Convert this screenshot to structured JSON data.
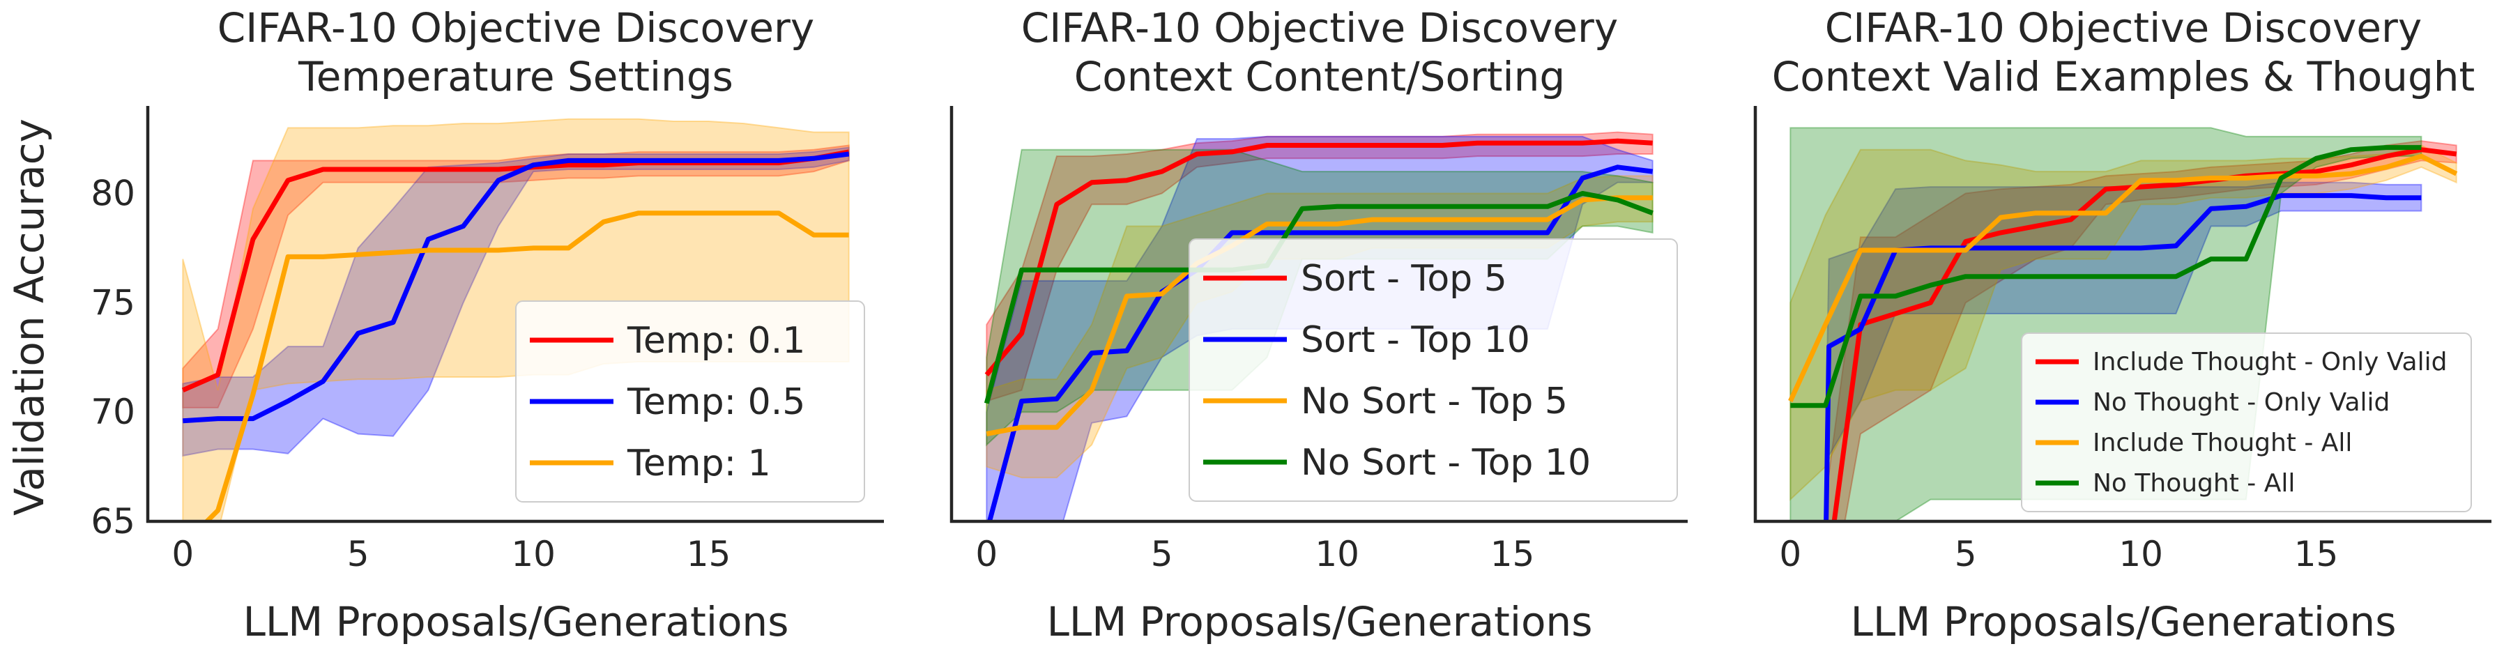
{
  "figure": {
    "ylabel": "Validation Accuracy"
  },
  "chart_data": [
    {
      "type": "line",
      "title": "CIFAR-10 Objective Discovery\nTemperature Settings",
      "xlabel": "LLM Proposals/Generations",
      "ylabel": "Validation Accuracy",
      "xlim": [
        -1,
        20
      ],
      "ylim": [
        65,
        84
      ],
      "xticks": [
        0,
        5,
        10,
        15
      ],
      "yticks": [
        65,
        70,
        75,
        80
      ],
      "legend": "lower-right",
      "legend_size": "big",
      "series": [
        {
          "name": "Temp: 0.1",
          "color": "#ff0000",
          "x": [
            0,
            1,
            2,
            3,
            4,
            5,
            6,
            7,
            8,
            9,
            10,
            11,
            12,
            13,
            14,
            15,
            16,
            17,
            18,
            19
          ],
          "y": [
            71.0,
            71.7,
            77.9,
            80.6,
            81.1,
            81.1,
            81.1,
            81.1,
            81.1,
            81.1,
            81.2,
            81.3,
            81.3,
            81.4,
            81.4,
            81.4,
            81.4,
            81.4,
            81.6,
            81.9
          ],
          "lower": [
            70.2,
            70.2,
            73.8,
            79.0,
            80.5,
            80.5,
            80.5,
            80.5,
            80.5,
            80.5,
            80.6,
            80.7,
            80.7,
            80.8,
            80.8,
            80.8,
            80.8,
            80.8,
            81.0,
            81.5
          ],
          "upper": [
            72.0,
            73.8,
            81.5,
            81.5,
            81.5,
            81.5,
            81.5,
            81.5,
            81.5,
            81.5,
            81.7,
            81.8,
            81.8,
            81.9,
            81.9,
            81.9,
            81.9,
            81.9,
            82.0,
            82.2
          ]
        },
        {
          "name": "Temp: 0.5",
          "color": "#0000ff",
          "x": [
            0,
            1,
            2,
            3,
            4,
            5,
            6,
            7,
            8,
            9,
            10,
            11,
            12,
            13,
            14,
            15,
            16,
            17,
            18,
            19
          ],
          "y": [
            69.6,
            69.7,
            69.7,
            70.5,
            71.4,
            73.6,
            74.1,
            77.9,
            78.5,
            80.6,
            81.3,
            81.5,
            81.5,
            81.5,
            81.5,
            81.5,
            81.5,
            81.5,
            81.6,
            81.8
          ],
          "lower": [
            68.0,
            68.3,
            68.3,
            68.1,
            69.7,
            69.0,
            68.9,
            71.0,
            75.0,
            78.5,
            81.0,
            81.1,
            81.1,
            81.1,
            81.1,
            81.1,
            81.1,
            81.1,
            81.2,
            81.5
          ],
          "upper": [
            71.3,
            71.6,
            71.6,
            73.0,
            73.0,
            77.5,
            79.3,
            81.2,
            81.3,
            81.4,
            81.6,
            81.8,
            81.8,
            81.8,
            81.8,
            81.8,
            81.8,
            81.8,
            81.9,
            82.1
          ]
        },
        {
          "name": "Temp: 1",
          "color": "#ffa500",
          "x": [
            0,
            1,
            2,
            3,
            4,
            5,
            6,
            7,
            8,
            9,
            10,
            11,
            12,
            13,
            14,
            15,
            16,
            17,
            18,
            19
          ],
          "y": [
            63.9,
            65.5,
            70.8,
            77.1,
            77.1,
            77.2,
            77.3,
            77.4,
            77.4,
            77.4,
            77.5,
            77.5,
            78.7,
            79.1,
            79.1,
            79.1,
            79.1,
            79.1,
            78.1,
            78.1
          ],
          "lower": [
            62.0,
            64.5,
            71.0,
            71.3,
            71.4,
            71.5,
            71.5,
            71.6,
            71.6,
            71.6,
            71.7,
            71.7,
            72.2,
            72.3,
            72.3,
            72.3,
            72.3,
            72.3,
            72.3,
            72.3
          ],
          "upper": [
            77.0,
            71.0,
            79.3,
            83.0,
            83.0,
            83.0,
            83.1,
            83.1,
            83.2,
            83.2,
            83.3,
            83.4,
            83.4,
            83.4,
            83.3,
            83.3,
            83.2,
            83.0,
            82.8,
            82.8
          ]
        }
      ]
    },
    {
      "type": "line",
      "title": "CIFAR-10 Objective Discovery\nContext Content/Sorting",
      "xlabel": "LLM Proposals/Generations",
      "ylabel": "",
      "xlim": [
        -1,
        20
      ],
      "ylim": [
        65,
        84
      ],
      "xticks": [
        0,
        5,
        10,
        15
      ],
      "yticks": [],
      "legend": "center-right",
      "legend_size": "big",
      "series": [
        {
          "name": "Sort - Top 5",
          "color": "#ff0000",
          "x": [
            0,
            1,
            2,
            3,
            4,
            5,
            6,
            7,
            8,
            9,
            10,
            11,
            12,
            13,
            14,
            15,
            16,
            17,
            18,
            19
          ],
          "y": [
            71.7,
            73.6,
            79.5,
            80.5,
            80.6,
            81.0,
            81.8,
            81.9,
            82.2,
            82.2,
            82.2,
            82.2,
            82.2,
            82.2,
            82.3,
            82.3,
            82.3,
            82.3,
            82.4,
            82.3
          ],
          "lower": [
            70.5,
            71.0,
            76.5,
            79.5,
            79.5,
            80.0,
            81.2,
            81.4,
            81.6,
            81.6,
            81.6,
            81.6,
            81.6,
            81.6,
            81.7,
            81.7,
            81.7,
            81.7,
            81.8,
            81.8
          ],
          "upper": [
            74.0,
            76.5,
            81.7,
            81.7,
            81.8,
            82.0,
            82.3,
            82.4,
            82.6,
            82.6,
            82.6,
            82.6,
            82.6,
            82.6,
            82.7,
            82.7,
            82.7,
            82.7,
            82.8,
            82.7
          ]
        },
        {
          "name": "Sort - Top 10",
          "color": "#0000ff",
          "x": [
            0,
            1,
            2,
            3,
            4,
            5,
            6,
            7,
            8,
            9,
            10,
            11,
            12,
            13,
            14,
            15,
            16,
            17,
            18,
            19
          ],
          "y": [
            64.5,
            70.5,
            70.6,
            72.7,
            72.8,
            75.5,
            76.5,
            78.2,
            78.2,
            78.2,
            78.2,
            78.2,
            78.2,
            78.2,
            78.2,
            78.2,
            78.2,
            80.7,
            81.2,
            81.0
          ],
          "lower": [
            60.0,
            64.0,
            64.0,
            69.5,
            69.8,
            72.5,
            73.5,
            73.8,
            73.8,
            73.8,
            73.8,
            73.8,
            73.8,
            73.8,
            73.8,
            73.8,
            73.8,
            79.5,
            80.5,
            80.5
          ],
          "upper": [
            70.0,
            76.0,
            76.0,
            76.0,
            76.0,
            78.5,
            82.5,
            82.5,
            82.6,
            82.6,
            82.6,
            82.6,
            82.6,
            82.6,
            82.6,
            82.6,
            82.6,
            82.6,
            82.0,
            81.5
          ]
        },
        {
          "name": "No Sort - Top 5",
          "color": "#ffa500",
          "x": [
            0,
            1,
            2,
            3,
            4,
            5,
            6,
            7,
            8,
            9,
            10,
            11,
            12,
            13,
            14,
            15,
            16,
            17,
            18,
            19
          ],
          "y": [
            69.0,
            69.3,
            69.3,
            71.0,
            75.3,
            75.4,
            76.8,
            77.6,
            78.6,
            78.6,
            78.6,
            78.8,
            78.8,
            78.8,
            78.8,
            78.8,
            78.8,
            79.7,
            79.8,
            79.8
          ],
          "lower": [
            67.5,
            67.0,
            67.0,
            68.5,
            72.0,
            72.5,
            75.0,
            75.5,
            77.0,
            77.0,
            77.0,
            77.5,
            77.5,
            77.5,
            77.5,
            77.5,
            77.5,
            78.5,
            78.7,
            78.7
          ],
          "upper": [
            71.0,
            71.5,
            71.5,
            74.0,
            78.5,
            78.5,
            79.0,
            79.5,
            80.0,
            80.0,
            80.0,
            80.0,
            80.0,
            80.0,
            80.0,
            80.0,
            80.0,
            80.7,
            80.8,
            80.8
          ]
        },
        {
          "name": "No Sort - Top 10",
          "color": "#008000",
          "x": [
            0,
            1,
            2,
            3,
            4,
            5,
            6,
            7,
            8,
            9,
            10,
            11,
            12,
            13,
            14,
            15,
            16,
            17,
            18,
            19
          ],
          "y": [
            70.4,
            76.5,
            76.5,
            76.5,
            76.5,
            76.5,
            76.5,
            76.5,
            76.7,
            79.3,
            79.4,
            79.4,
            79.4,
            79.4,
            79.4,
            79.4,
            79.4,
            80.0,
            79.7,
            79.1
          ],
          "lower": [
            68.5,
            70.0,
            70.0,
            71.0,
            71.0,
            71.0,
            71.0,
            71.0,
            72.5,
            77.0,
            77.0,
            77.0,
            77.0,
            77.0,
            77.0,
            77.0,
            77.0,
            78.5,
            78.5,
            78.2
          ],
          "upper": [
            72.5,
            82.0,
            82.0,
            82.0,
            82.0,
            82.0,
            82.0,
            82.0,
            81.5,
            81.0,
            81.0,
            81.0,
            81.0,
            81.0,
            81.0,
            81.0,
            81.0,
            81.0,
            80.8,
            80.5
          ]
        }
      ]
    },
    {
      "type": "line",
      "title": "CIFAR-10 Objective Discovery\nContext Valid Examples & Thought",
      "xlabel": "LLM Proposals/Generations",
      "ylabel": "",
      "xlim": [
        -1,
        20
      ],
      "ylim": [
        65,
        84
      ],
      "xticks": [
        0,
        5,
        10,
        15
      ],
      "yticks": [],
      "legend": "lower-right",
      "legend_size": "small",
      "series": [
        {
          "name": "Include Thought - Only Valid",
          "color": "#ff0000",
          "x": [
            1,
            2,
            3,
            4,
            5,
            6,
            7,
            8,
            9,
            10,
            11,
            12,
            13,
            14,
            15,
            16,
            17,
            18,
            19
          ],
          "y": [
            62.0,
            74.0,
            74.5,
            75.0,
            77.8,
            78.2,
            78.5,
            78.8,
            80.2,
            80.3,
            80.4,
            80.6,
            80.8,
            80.9,
            81.0,
            81.3,
            81.7,
            82.0,
            81.8
          ],
          "lower": [
            60.0,
            69.0,
            70.0,
            71.0,
            75.0,
            76.0,
            77.0,
            77.5,
            79.5,
            79.7,
            79.8,
            80.0,
            80.2,
            80.3,
            80.4,
            80.7,
            81.1,
            81.5,
            81.4
          ],
          "upper": [
            66.0,
            78.0,
            78.0,
            79.0,
            80.0,
            80.2,
            80.3,
            80.4,
            80.8,
            80.9,
            81.0,
            81.2,
            81.3,
            81.4,
            81.5,
            81.8,
            82.2,
            82.4,
            82.2
          ]
        },
        {
          "name": "No Thought - Only Valid",
          "color": "#0000ff",
          "x": [
            1,
            1.1,
            2,
            3,
            4,
            5,
            6,
            7,
            8,
            9,
            10,
            11,
            12,
            13,
            14,
            15,
            16,
            17,
            18
          ],
          "y": [
            63.0,
            73.0,
            73.8,
            77.4,
            77.5,
            77.5,
            77.5,
            77.5,
            77.5,
            77.5,
            77.5,
            77.6,
            79.3,
            79.4,
            79.9,
            79.9,
            79.9,
            79.8,
            79.8
          ],
          "lower": [
            60.0,
            68.0,
            70.5,
            74.5,
            74.5,
            74.5,
            74.5,
            74.5,
            74.5,
            74.5,
            74.5,
            74.5,
            78.5,
            78.5,
            79.2,
            79.2,
            79.2,
            79.2,
            79.2
          ],
          "upper": [
            68.0,
            77.0,
            77.5,
            80.2,
            80.3,
            80.3,
            80.3,
            80.3,
            80.3,
            80.3,
            80.3,
            80.3,
            80.3,
            80.3,
            80.5,
            80.5,
            80.5,
            80.4,
            80.4
          ]
        },
        {
          "name": "Include Thought - All",
          "color": "#ffa500",
          "x": [
            0,
            1,
            2,
            3,
            4,
            5,
            6,
            7,
            8,
            9,
            10,
            11,
            12,
            13,
            14,
            15,
            16,
            17,
            18,
            19
          ],
          "y": [
            70.5,
            74.0,
            77.4,
            77.4,
            77.4,
            77.4,
            78.9,
            79.1,
            79.1,
            79.1,
            80.6,
            80.6,
            80.7,
            80.7,
            80.8,
            80.8,
            80.9,
            81.2,
            81.7,
            80.9
          ],
          "lower": [
            66.0,
            67.5,
            70.5,
            71.0,
            71.0,
            72.0,
            76.5,
            77.0,
            77.0,
            77.0,
            79.5,
            79.5,
            79.8,
            79.8,
            80.0,
            80.0,
            80.2,
            80.6,
            81.2,
            80.5
          ],
          "upper": [
            75.0,
            79.0,
            82.0,
            82.0,
            82.0,
            81.5,
            81.3,
            81.0,
            81.0,
            81.0,
            81.5,
            81.5,
            81.5,
            81.5,
            81.6,
            81.6,
            81.7,
            81.8,
            82.2,
            81.4
          ]
        },
        {
          "name": "No Thought - All",
          "color": "#008000",
          "x": [
            0,
            1,
            2,
            3,
            4,
            5,
            6,
            7,
            8,
            9,
            10,
            11,
            12,
            13,
            14,
            15,
            16,
            17,
            18
          ],
          "y": [
            70.3,
            70.3,
            75.3,
            75.3,
            75.8,
            76.2,
            76.2,
            76.2,
            76.2,
            76.2,
            76.2,
            76.2,
            77.0,
            77.0,
            80.7,
            81.6,
            82.0,
            82.1,
            82.1
          ],
          "lower": [
            60.0,
            60.0,
            64.0,
            65.0,
            66.0,
            66.0,
            66.0,
            66.0,
            66.0,
            66.0,
            66.0,
            66.0,
            66.0,
            66.0,
            80.0,
            81.2,
            81.6,
            81.7,
            81.7
          ],
          "upper": [
            83.0,
            83.0,
            83.0,
            83.0,
            83.0,
            83.0,
            83.0,
            83.0,
            83.0,
            83.0,
            83.0,
            83.0,
            83.0,
            82.6,
            82.6,
            82.6,
            82.6,
            82.6,
            82.6
          ]
        }
      ]
    }
  ]
}
